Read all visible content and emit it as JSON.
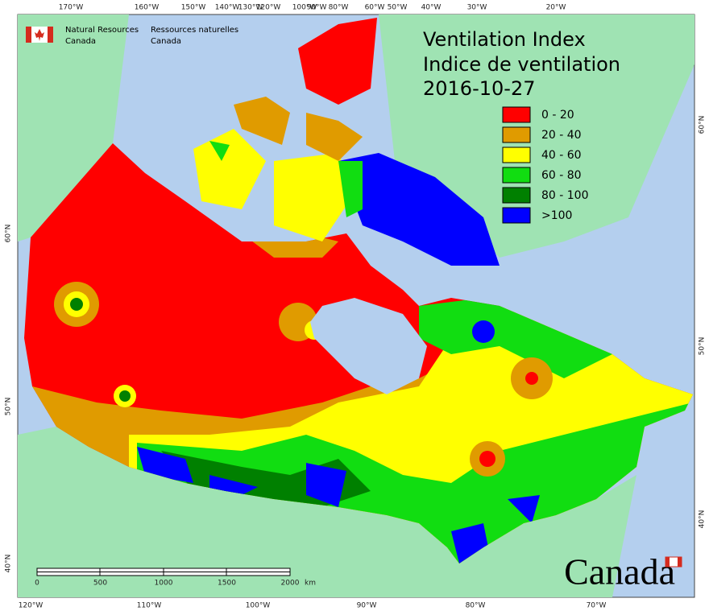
{
  "header": {
    "agency_en": "Natural Resources",
    "country_en": "Canada",
    "agency_fr": "Ressources naturelles",
    "country_fr": "Canada"
  },
  "title": {
    "line1": "Ventilation Index",
    "line2": "Indice de ventilation",
    "date": "2016-10-27"
  },
  "legend": {
    "items": [
      {
        "label": "0 - 20",
        "color": "#ff0000"
      },
      {
        "label": "20 - 40",
        "color": "#e09b00"
      },
      {
        "label": "40 - 60",
        "color": "#ffff00"
      },
      {
        "label": "60 - 80",
        "color": "#11dd11"
      },
      {
        "label": "80 - 100",
        "color": "#008000"
      },
      {
        "label": ">100",
        "color": "#0000ff"
      }
    ]
  },
  "graticule": {
    "top": [
      "170°W",
      "160°W",
      "150°W",
      "140°W",
      "130°W",
      "120°W",
      "100°W",
      "90°W",
      "80°W",
      "60°W",
      "50°W",
      "40°W",
      "30°W",
      "20°W"
    ],
    "bottom": [
      "120°W",
      "110°W",
      "100°W",
      "90°W",
      "80°W",
      "70°W"
    ],
    "left": [
      "60°N",
      "50°N",
      "40°N"
    ],
    "right": [
      "60°N",
      "50°N",
      "40°N"
    ]
  },
  "scale_bar": {
    "labels": [
      "0",
      "500",
      "1000",
      "1500",
      "2000"
    ],
    "unit": "km"
  },
  "wordmark": "Canada"
}
